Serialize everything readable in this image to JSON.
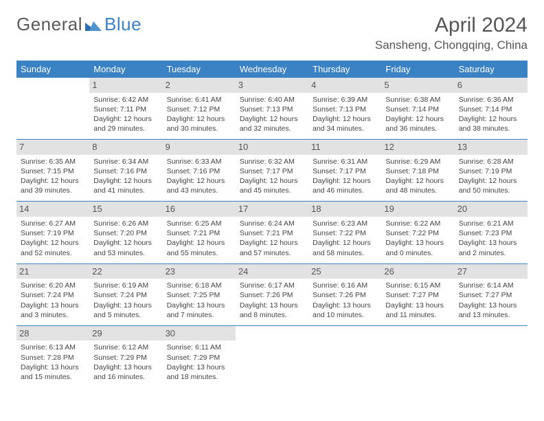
{
  "logo": {
    "text1": "General",
    "text2": "Blue"
  },
  "title": "April 2024",
  "location": "Sansheng, Chongqing, China",
  "colors": {
    "header_bg": "#3b82c4",
    "daynum_bg": "#e2e2e2",
    "border": "#3b82c4",
    "text": "#444"
  },
  "weekdays": [
    "Sunday",
    "Monday",
    "Tuesday",
    "Wednesday",
    "Thursday",
    "Friday",
    "Saturday"
  ],
  "weeks": [
    [
      {
        "n": "",
        "empty": true,
        "l1": "",
        "l2": "",
        "l3": "",
        "l4": ""
      },
      {
        "n": "1",
        "l1": "Sunrise: 6:42 AM",
        "l2": "Sunset: 7:11 PM",
        "l3": "Daylight: 12 hours",
        "l4": "and 29 minutes."
      },
      {
        "n": "2",
        "l1": "Sunrise: 6:41 AM",
        "l2": "Sunset: 7:12 PM",
        "l3": "Daylight: 12 hours",
        "l4": "and 30 minutes."
      },
      {
        "n": "3",
        "l1": "Sunrise: 6:40 AM",
        "l2": "Sunset: 7:13 PM",
        "l3": "Daylight: 12 hours",
        "l4": "and 32 minutes."
      },
      {
        "n": "4",
        "l1": "Sunrise: 6:39 AM",
        "l2": "Sunset: 7:13 PM",
        "l3": "Daylight: 12 hours",
        "l4": "and 34 minutes."
      },
      {
        "n": "5",
        "l1": "Sunrise: 6:38 AM",
        "l2": "Sunset: 7:14 PM",
        "l3": "Daylight: 12 hours",
        "l4": "and 36 minutes."
      },
      {
        "n": "6",
        "l1": "Sunrise: 6:36 AM",
        "l2": "Sunset: 7:14 PM",
        "l3": "Daylight: 12 hours",
        "l4": "and 38 minutes."
      }
    ],
    [
      {
        "n": "7",
        "l1": "Sunrise: 6:35 AM",
        "l2": "Sunset: 7:15 PM",
        "l3": "Daylight: 12 hours",
        "l4": "and 39 minutes."
      },
      {
        "n": "8",
        "l1": "Sunrise: 6:34 AM",
        "l2": "Sunset: 7:16 PM",
        "l3": "Daylight: 12 hours",
        "l4": "and 41 minutes."
      },
      {
        "n": "9",
        "l1": "Sunrise: 6:33 AM",
        "l2": "Sunset: 7:16 PM",
        "l3": "Daylight: 12 hours",
        "l4": "and 43 minutes."
      },
      {
        "n": "10",
        "l1": "Sunrise: 6:32 AM",
        "l2": "Sunset: 7:17 PM",
        "l3": "Daylight: 12 hours",
        "l4": "and 45 minutes."
      },
      {
        "n": "11",
        "l1": "Sunrise: 6:31 AM",
        "l2": "Sunset: 7:17 PM",
        "l3": "Daylight: 12 hours",
        "l4": "and 46 minutes."
      },
      {
        "n": "12",
        "l1": "Sunrise: 6:29 AM",
        "l2": "Sunset: 7:18 PM",
        "l3": "Daylight: 12 hours",
        "l4": "and 48 minutes."
      },
      {
        "n": "13",
        "l1": "Sunrise: 6:28 AM",
        "l2": "Sunset: 7:19 PM",
        "l3": "Daylight: 12 hours",
        "l4": "and 50 minutes."
      }
    ],
    [
      {
        "n": "14",
        "l1": "Sunrise: 6:27 AM",
        "l2": "Sunset: 7:19 PM",
        "l3": "Daylight: 12 hours",
        "l4": "and 52 minutes."
      },
      {
        "n": "15",
        "l1": "Sunrise: 6:26 AM",
        "l2": "Sunset: 7:20 PM",
        "l3": "Daylight: 12 hours",
        "l4": "and 53 minutes."
      },
      {
        "n": "16",
        "l1": "Sunrise: 6:25 AM",
        "l2": "Sunset: 7:21 PM",
        "l3": "Daylight: 12 hours",
        "l4": "and 55 minutes."
      },
      {
        "n": "17",
        "l1": "Sunrise: 6:24 AM",
        "l2": "Sunset: 7:21 PM",
        "l3": "Daylight: 12 hours",
        "l4": "and 57 minutes."
      },
      {
        "n": "18",
        "l1": "Sunrise: 6:23 AM",
        "l2": "Sunset: 7:22 PM",
        "l3": "Daylight: 12 hours",
        "l4": "and 58 minutes."
      },
      {
        "n": "19",
        "l1": "Sunrise: 6:22 AM",
        "l2": "Sunset: 7:22 PM",
        "l3": "Daylight: 13 hours",
        "l4": "and 0 minutes."
      },
      {
        "n": "20",
        "l1": "Sunrise: 6:21 AM",
        "l2": "Sunset: 7:23 PM",
        "l3": "Daylight: 13 hours",
        "l4": "and 2 minutes."
      }
    ],
    [
      {
        "n": "21",
        "l1": "Sunrise: 6:20 AM",
        "l2": "Sunset: 7:24 PM",
        "l3": "Daylight: 13 hours",
        "l4": "and 3 minutes."
      },
      {
        "n": "22",
        "l1": "Sunrise: 6:19 AM",
        "l2": "Sunset: 7:24 PM",
        "l3": "Daylight: 13 hours",
        "l4": "and 5 minutes."
      },
      {
        "n": "23",
        "l1": "Sunrise: 6:18 AM",
        "l2": "Sunset: 7:25 PM",
        "l3": "Daylight: 13 hours",
        "l4": "and 7 minutes."
      },
      {
        "n": "24",
        "l1": "Sunrise: 6:17 AM",
        "l2": "Sunset: 7:26 PM",
        "l3": "Daylight: 13 hours",
        "l4": "and 8 minutes."
      },
      {
        "n": "25",
        "l1": "Sunrise: 6:16 AM",
        "l2": "Sunset: 7:26 PM",
        "l3": "Daylight: 13 hours",
        "l4": "and 10 minutes."
      },
      {
        "n": "26",
        "l1": "Sunrise: 6:15 AM",
        "l2": "Sunset: 7:27 PM",
        "l3": "Daylight: 13 hours",
        "l4": "and 11 minutes."
      },
      {
        "n": "27",
        "l1": "Sunrise: 6:14 AM",
        "l2": "Sunset: 7:27 PM",
        "l3": "Daylight: 13 hours",
        "l4": "and 13 minutes."
      }
    ],
    [
      {
        "n": "28",
        "l1": "Sunrise: 6:13 AM",
        "l2": "Sunset: 7:28 PM",
        "l3": "Daylight: 13 hours",
        "l4": "and 15 minutes."
      },
      {
        "n": "29",
        "l1": "Sunrise: 6:12 AM",
        "l2": "Sunset: 7:29 PM",
        "l3": "Daylight: 13 hours",
        "l4": "and 16 minutes."
      },
      {
        "n": "30",
        "l1": "Sunrise: 6:11 AM",
        "l2": "Sunset: 7:29 PM",
        "l3": "Daylight: 13 hours",
        "l4": "and 18 minutes."
      },
      {
        "n": "",
        "empty": true,
        "l1": "",
        "l2": "",
        "l3": "",
        "l4": ""
      },
      {
        "n": "",
        "empty": true,
        "l1": "",
        "l2": "",
        "l3": "",
        "l4": ""
      },
      {
        "n": "",
        "empty": true,
        "l1": "",
        "l2": "",
        "l3": "",
        "l4": ""
      },
      {
        "n": "",
        "empty": true,
        "l1": "",
        "l2": "",
        "l3": "",
        "l4": ""
      }
    ]
  ]
}
